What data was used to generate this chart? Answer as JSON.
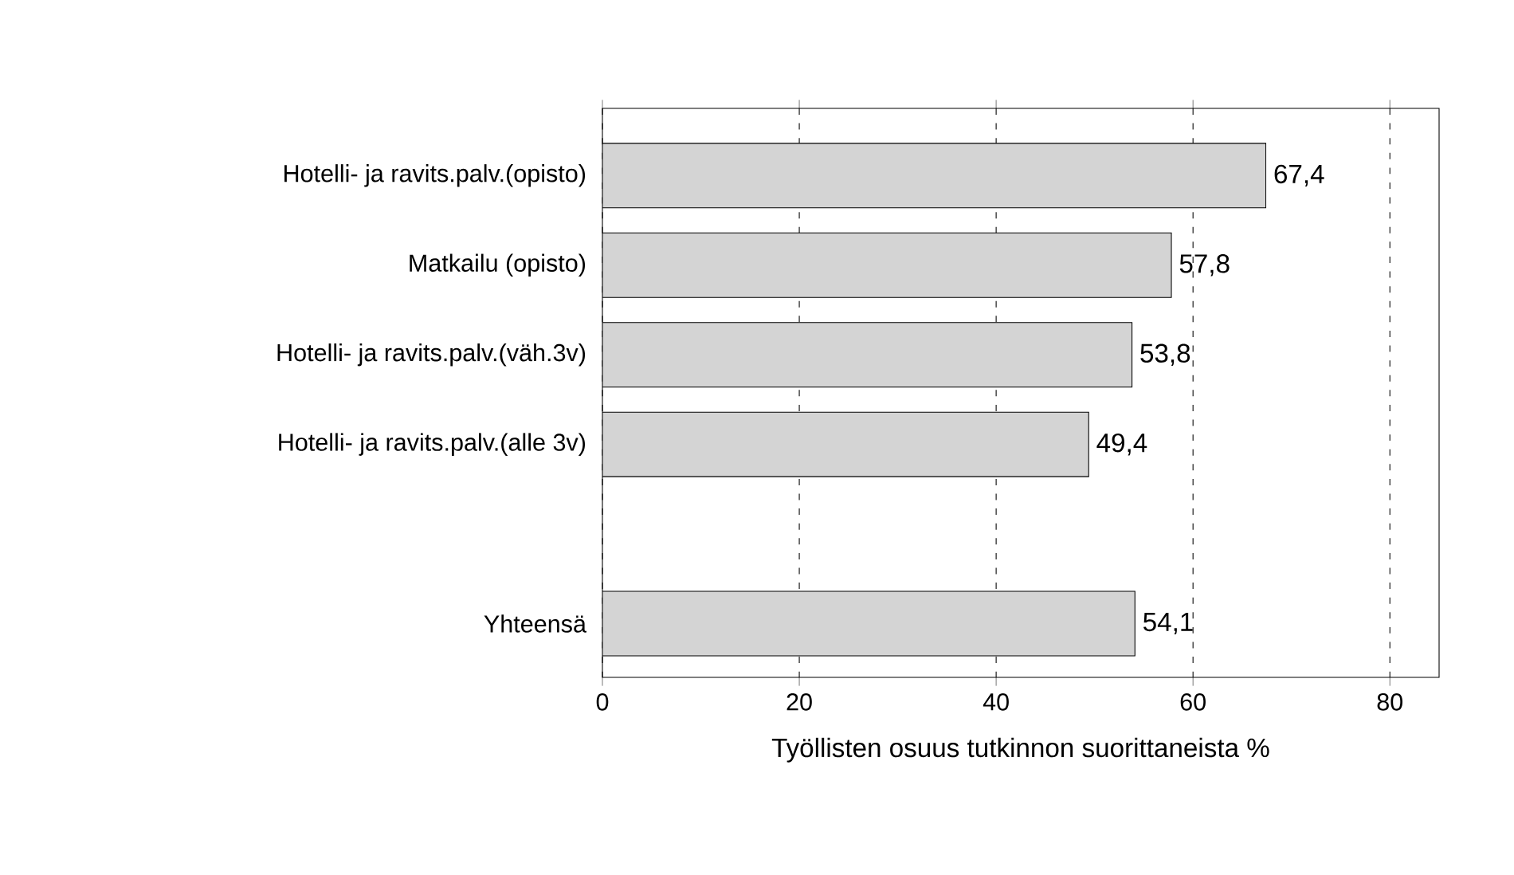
{
  "chart_data": {
    "type": "bar",
    "orientation": "horizontal",
    "categories": [
      "Hotelli- ja ravits.palv.(opisto)",
      "Matkailu (opisto)",
      "Hotelli- ja ravits.palv.(väh.3v)",
      "Hotelli- ja ravits.palv.(alle 3v)",
      null,
      "Yhteensä"
    ],
    "values": [
      67.4,
      57.8,
      53.8,
      49.4,
      null,
      54.1
    ],
    "value_labels": [
      "67,4",
      "57,8",
      "53,8",
      "49,4",
      null,
      "54,1"
    ],
    "color": "#d4d4d4",
    "xlabel": "Työllisten osuus tutkinnon suorittaneista %",
    "xlim": [
      0,
      85
    ],
    "xticks": [
      0,
      20,
      40,
      60,
      80
    ],
    "grid": "x"
  }
}
